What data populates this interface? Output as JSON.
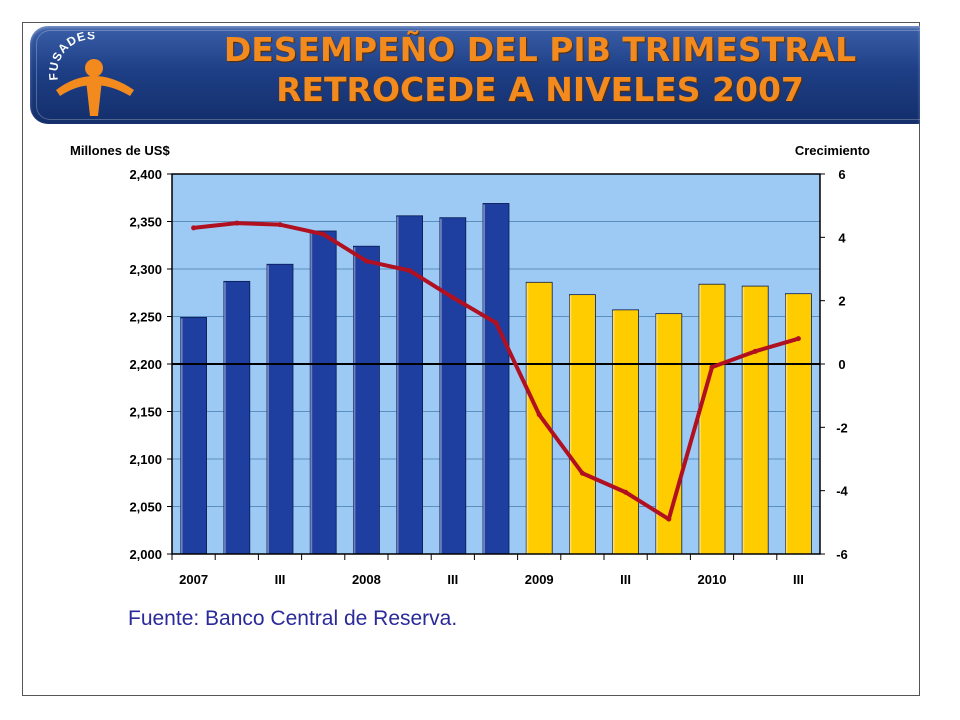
{
  "slide": {
    "title_line1": "DESEMPEÑO DEL PIB TRIMESTRAL",
    "title_line2": "RETROCEDE A NIVELES 2007",
    "logo_text": "FUSADES",
    "source": "Fuente: Banco Central de Reserva."
  },
  "colors": {
    "bar_pre": "#1f3fa0",
    "bar_post": "#ffcc00",
    "line": "#b01020",
    "plot_bg": "#9ccaf4",
    "title": "#f28a1e",
    "banner": "#1e3f86"
  },
  "chart_data": {
    "type": "bar",
    "ylabel": "Millones de US$",
    "y2label": "Crecimiento",
    "ylim": [
      2000,
      2400
    ],
    "y2lim": [
      -6,
      6
    ],
    "yticks": [
      "2,000",
      "2,050",
      "2,100",
      "2,150",
      "2,200",
      "2,250",
      "2,300",
      "2,350",
      "2,400"
    ],
    "y2ticks": [
      "-6",
      "-4",
      "-2",
      "0",
      "2",
      "4",
      "6"
    ],
    "categories": [
      "2007",
      "",
      "III",
      "",
      "2008",
      "",
      "III",
      "",
      "2009",
      "",
      "III",
      "",
      "2010",
      "",
      "III"
    ],
    "bars": {
      "values": [
        2249,
        2287,
        2305,
        2340,
        2324,
        2356,
        2354,
        2369,
        2286,
        2273,
        2257,
        2253,
        2284,
        2282,
        2274
      ],
      "highlight_from_index": 8
    },
    "line": {
      "values": [
        4.3,
        4.45,
        4.4,
        4.1,
        3.25,
        2.95,
        2.1,
        1.3,
        -1.6,
        -3.45,
        -4.05,
        -4.9,
        -0.1,
        0.4,
        0.8
      ]
    },
    "grid": true
  }
}
